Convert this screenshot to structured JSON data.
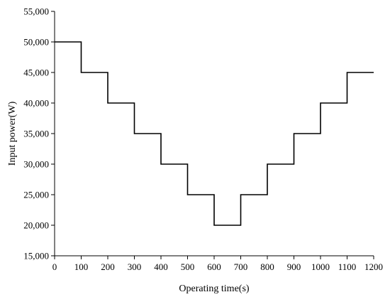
{
  "chart_data": {
    "type": "line",
    "step": "post",
    "title": "",
    "xlabel": "Operating time(s)",
    "ylabel": "Input power(W)",
    "xlim": [
      0,
      1200
    ],
    "ylim": [
      15000,
      55000
    ],
    "xticks": [
      0,
      100,
      200,
      300,
      400,
      500,
      600,
      700,
      800,
      900,
      1000,
      1100,
      1200
    ],
    "yticks": [
      15000,
      20000,
      25000,
      30000,
      35000,
      40000,
      45000,
      50000,
      55000
    ],
    "xtick_labels": [
      "0",
      "100",
      "200",
      "300",
      "400",
      "500",
      "600",
      "700",
      "800",
      "900",
      "1000",
      "1100",
      "1200"
    ],
    "ytick_labels": [
      "15,000",
      "20,000",
      "25,000",
      "30,000",
      "35,000",
      "40,000",
      "45,000",
      "50,000",
      "55,000"
    ],
    "grid": false,
    "legend": "none",
    "series": [
      {
        "x": [
          0,
          100,
          200,
          300,
          400,
          500,
          600,
          700,
          800,
          900,
          1000,
          1100,
          1200
        ],
        "y": [
          50000,
          45000,
          40000,
          35000,
          30000,
          25000,
          20000,
          25000,
          30000,
          35000,
          40000,
          45000,
          45000
        ],
        "color": "#000000"
      }
    ]
  }
}
